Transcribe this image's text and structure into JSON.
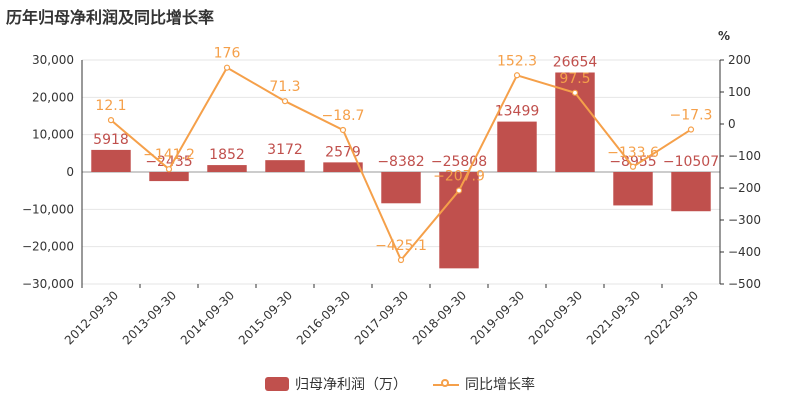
{
  "title": "历年归母净利润及同比增长率",
  "colors": {
    "bar": "#c0504d",
    "line": "#f5a04a",
    "axis": "#666666",
    "grid": "#e6e6e6"
  },
  "legend": {
    "bar_label": "归母净利润（万）",
    "line_label": "同比增长率"
  },
  "chart_data": {
    "type": "bar",
    "categories": [
      "2012-09-30",
      "2013-09-30",
      "2014-09-30",
      "2015-09-30",
      "2016-09-30",
      "2017-09-30",
      "2018-09-30",
      "2019-09-30",
      "2020-09-30",
      "2021-09-30",
      "2022-09-30"
    ],
    "series": [
      {
        "name": "归母净利润（万）",
        "type": "bar",
        "axis": "left",
        "values": [
          5918,
          -2435,
          1852,
          3172,
          2579,
          -8382,
          -25808,
          13499,
          26654,
          -8955,
          -10507
        ],
        "labels": [
          "5918",
          "−2435",
          "1852",
          "3172",
          "2579",
          "−8382",
          "−25808",
          "13499",
          "26654",
          "−8955",
          "−10507"
        ]
      },
      {
        "name": "同比增长率",
        "type": "line",
        "axis": "right",
        "values": [
          12.1,
          -141.2,
          176,
          71.3,
          -18.7,
          -425.1,
          -207.9,
          152.3,
          97.5,
          -133.6,
          -17.3
        ],
        "labels": [
          "12.1",
          "−141.2",
          "176",
          "71.3",
          "−18.7",
          "−425.1",
          "−207.9",
          "152.3",
          "97.5",
          "−133.6",
          "−17.3"
        ]
      }
    ],
    "left_axis": {
      "ylim": [
        -30000,
        30000
      ],
      "ticks": [
        30000,
        20000,
        10000,
        0,
        -10000,
        -20000,
        -30000
      ],
      "tick_labels": [
        "30,000",
        "20,000",
        "10,000",
        "0",
        "−10,000",
        "−20,000",
        "−30,000"
      ]
    },
    "right_axis": {
      "ylim": [
        -500,
        200
      ],
      "unit": "%",
      "ticks": [
        200,
        100,
        0,
        -100,
        -200,
        -300,
        -400,
        -500
      ],
      "tick_labels": [
        "200",
        "100",
        "0",
        "−100",
        "−200",
        "−300",
        "−400",
        "−500"
      ]
    },
    "legend_position": "bottom-center"
  }
}
